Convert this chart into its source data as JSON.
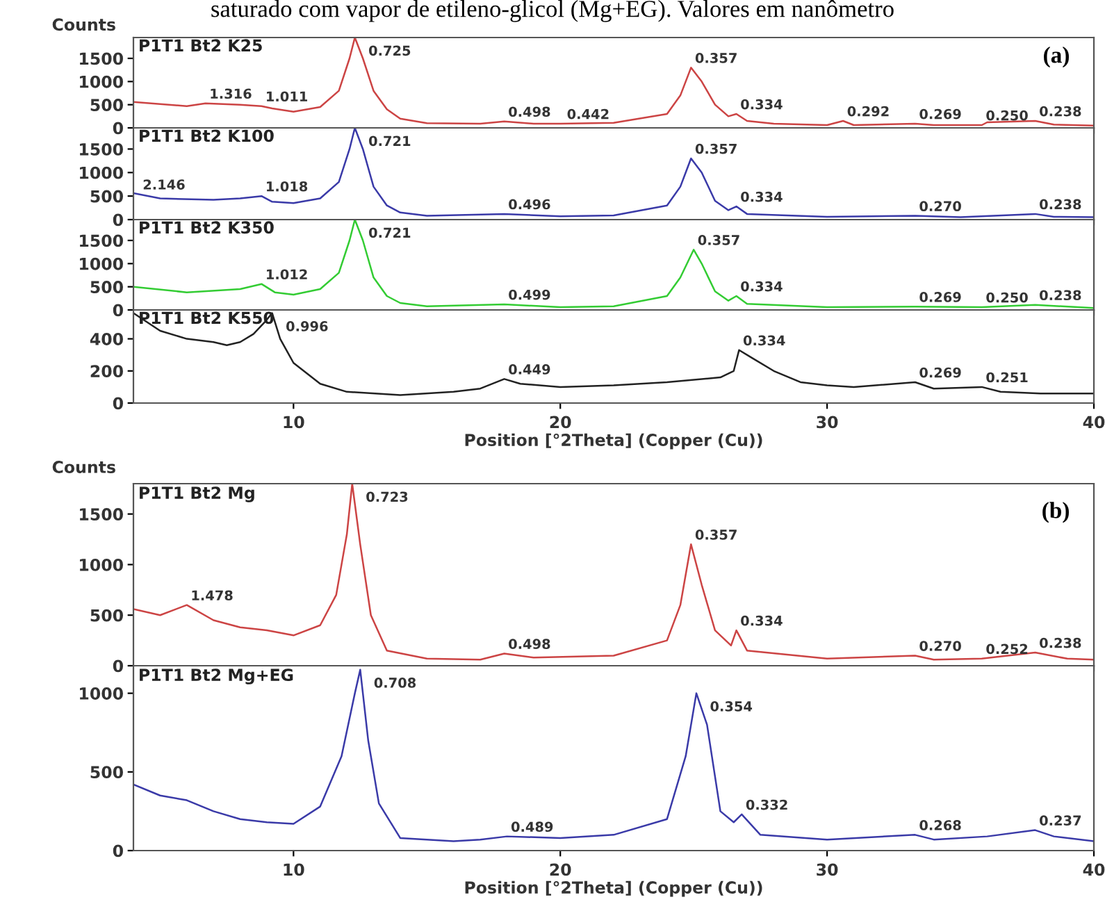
{
  "chart_data": [
    {
      "type": "line",
      "title": "saturado com vapor de etileno-glicol (Mg+EG). Valores em nanômetro",
      "ylabel": "Counts",
      "tick_labels": "y",
      "xlim": [
        4,
        40
      ],
      "xticks": [
        10,
        20,
        30,
        40
      ],
      "ylim": [
        0,
        1950
      ],
      "yticks": [
        0,
        500,
        1000,
        1500
      ],
      "x": [
        4,
        6,
        6.7,
        8,
        8.8,
        9.2,
        10,
        11,
        11.7,
        12.1,
        12.3,
        12.6,
        13,
        13.5,
        14,
        15,
        17,
        17.9,
        19,
        20,
        22,
        24,
        24.5,
        24.9,
        25.3,
        25.8,
        26.3,
        26.6,
        27,
        28,
        30,
        30.6,
        31,
        33.3,
        34,
        35.8,
        36,
        37.8,
        38.5,
        40
      ],
      "series": [
        {
          "name": "P1T1 Bt2 K25",
          "color": "#cc4444",
          "values": [
            560,
            470,
            530,
            500,
            470,
            420,
            350,
            450,
            800,
            1500,
            1950,
            1500,
            800,
            400,
            200,
            100,
            90,
            140,
            90,
            90,
            110,
            300,
            700,
            1300,
            1000,
            500,
            250,
            300,
            150,
            90,
            60,
            150,
            60,
            90,
            60,
            60,
            120,
            150,
            70,
            50
          ]
        }
      ],
      "annotations": [
        "(a)",
        {
          "text": "1.316",
          "x": 6.7,
          "y": 530
        },
        {
          "text": "1.011",
          "x": 8.8,
          "y": 470
        },
        {
          "text": "0.725",
          "x": 12.3,
          "y": 1950
        },
        {
          "text": "0.498",
          "x": 17.9,
          "y": 140
        },
        {
          "text": "0.442",
          "x": 20.1,
          "y": 90
        },
        {
          "text": "0.357",
          "x": 24.9,
          "y": 1300
        },
        {
          "text": "0.334",
          "x": 26.6,
          "y": 300
        },
        {
          "text": "0.292",
          "x": 30.6,
          "y": 150
        },
        {
          "text": "0.269",
          "x": 33.3,
          "y": 90
        },
        {
          "text": "0.250",
          "x": 35.8,
          "y": 60
        },
        {
          "text": "0.238",
          "x": 37.8,
          "y": 150
        }
      ]
    },
    {
      "type": "line",
      "tick_labels": "y",
      "xlim": [
        4,
        40
      ],
      "xticks": [
        10,
        20,
        30,
        40
      ],
      "ylim": [
        0,
        1950
      ],
      "yticks": [
        0,
        500,
        1000,
        1500
      ],
      "x": [
        4,
        5,
        7,
        8,
        8.8,
        9.2,
        10,
        11,
        11.7,
        12.1,
        12.3,
        12.6,
        13,
        13.5,
        14,
        15,
        17.9,
        20,
        22,
        24,
        24.5,
        24.9,
        25.3,
        25.8,
        26.3,
        26.6,
        27,
        30,
        33.3,
        35,
        37.8,
        38.5,
        40
      ],
      "series": [
        {
          "name": "P1T1 Bt2 K100",
          "color": "#3a3aa8",
          "values": [
            560,
            450,
            420,
            450,
            500,
            380,
            350,
            450,
            800,
            1500,
            1950,
            1500,
            700,
            300,
            150,
            80,
            120,
            70,
            90,
            300,
            700,
            1300,
            1000,
            400,
            200,
            280,
            120,
            60,
            80,
            50,
            120,
            60,
            50
          ]
        }
      ],
      "annotations": [
        {
          "text": "2.146",
          "x": 4.2,
          "y": 540
        },
        {
          "text": "1.018",
          "x": 8.8,
          "y": 500
        },
        {
          "text": "0.721",
          "x": 12.3,
          "y": 1950
        },
        {
          "text": "0.496",
          "x": 17.9,
          "y": 120
        },
        {
          "text": "0.357",
          "x": 24.9,
          "y": 1300
        },
        {
          "text": "0.334",
          "x": 26.6,
          "y": 280
        },
        {
          "text": "0.270",
          "x": 33.3,
          "y": 80
        },
        {
          "text": "0.238",
          "x": 37.8,
          "y": 120
        }
      ]
    },
    {
      "type": "line",
      "tick_labels": "y",
      "xlim": [
        4,
        40
      ],
      "xticks": [
        10,
        20,
        30,
        40
      ],
      "ylim": [
        0,
        1950
      ],
      "yticks": [
        0,
        500,
        1000,
        1500
      ],
      "x": [
        4,
        6,
        8,
        8.8,
        9.3,
        10,
        11,
        11.7,
        12.1,
        12.3,
        12.6,
        13,
        13.5,
        14,
        15,
        17.9,
        20,
        22,
        24,
        24.5,
        25.0,
        25.3,
        25.8,
        26.3,
        26.6,
        27,
        30,
        33.3,
        35.8,
        37.8,
        40
      ],
      "series": [
        {
          "name": "P1T1 Bt2 K350",
          "color": "#33cc33",
          "values": [
            500,
            380,
            450,
            560,
            380,
            330,
            450,
            800,
            1500,
            1950,
            1500,
            700,
            300,
            150,
            80,
            120,
            60,
            80,
            300,
            700,
            1300,
            1000,
            400,
            200,
            300,
            130,
            60,
            70,
            60,
            110,
            40
          ]
        }
      ],
      "annotations": [
        {
          "text": "1.012",
          "x": 8.8,
          "y": 560
        },
        {
          "text": "0.721",
          "x": 12.3,
          "y": 1950
        },
        {
          "text": "0.499",
          "x": 17.9,
          "y": 120
        },
        {
          "text": "0.357",
          "x": 25.0,
          "y": 1300
        },
        {
          "text": "0.334",
          "x": 26.6,
          "y": 300
        },
        {
          "text": "0.269",
          "x": 33.3,
          "y": 70
        },
        {
          "text": "0.250",
          "x": 35.8,
          "y": 60
        },
        {
          "text": "0.238",
          "x": 37.8,
          "y": 110
        }
      ]
    },
    {
      "type": "line",
      "xlabel": "Position [°2Theta] (Copper (Cu))",
      "xlim": [
        4,
        40
      ],
      "xticks": [
        10,
        20,
        30,
        40
      ],
      "ylim": [
        0,
        580
      ],
      "yticks": [
        0,
        200,
        400
      ],
      "x": [
        4,
        5,
        6,
        7,
        7.5,
        8,
        8.5,
        8.9,
        9.2,
        9.5,
        10,
        11,
        12,
        14,
        16,
        17,
        17.9,
        18.5,
        20,
        22,
        24,
        26,
        26.5,
        26.7,
        27.2,
        28,
        29,
        30,
        31,
        33.3,
        34,
        35.8,
        36.5,
        38,
        40
      ],
      "series": [
        {
          "name": "P1T1 Bt2 K550",
          "color": "#222222",
          "values": [
            560,
            450,
            400,
            380,
            360,
            380,
            430,
            500,
            560,
            400,
            250,
            120,
            70,
            50,
            70,
            90,
            150,
            120,
            100,
            110,
            130,
            160,
            200,
            330,
            280,
            200,
            130,
            110,
            100,
            130,
            90,
            100,
            70,
            60,
            60
          ]
        }
      ],
      "annotations": [
        {
          "text": "0.996",
          "x": 9.2,
          "y": 560
        },
        {
          "text": "0.449",
          "x": 17.9,
          "y": 150
        },
        {
          "text": "0.334",
          "x": 26.7,
          "y": 330
        },
        {
          "text": "0.269",
          "x": 33.3,
          "y": 130
        },
        {
          "text": "0.251",
          "x": 35.8,
          "y": 100
        }
      ]
    },
    {
      "type": "line",
      "ylabel": "Counts",
      "tick_labels": "y",
      "xlim": [
        4,
        40
      ],
      "xticks": [
        10,
        20,
        30,
        40
      ],
      "ylim": [
        0,
        1800
      ],
      "yticks": [
        0,
        500,
        1000,
        1500
      ],
      "x": [
        4,
        5,
        6,
        7,
        8,
        9,
        10,
        11,
        11.6,
        12.0,
        12.2,
        12.5,
        12.9,
        13.5,
        15,
        17,
        17.9,
        19,
        22,
        24,
        24.5,
        24.9,
        25.3,
        25.8,
        26.4,
        26.6,
        27,
        30,
        33.3,
        34,
        35.8,
        37.8,
        39,
        40
      ],
      "series": [
        {
          "name": "P1T1 Bt2 Mg",
          "color": "#cc4444",
          "values": [
            560,
            500,
            600,
            450,
            380,
            350,
            300,
            400,
            700,
            1300,
            1800,
            1200,
            500,
            150,
            70,
            60,
            120,
            80,
            100,
            250,
            600,
            1200,
            800,
            350,
            200,
            350,
            150,
            70,
            100,
            60,
            70,
            130,
            70,
            60
          ]
        }
      ],
      "annotations": [
        "(b)",
        {
          "text": "1.478",
          "x": 6,
          "y": 600
        },
        {
          "text": "0.723",
          "x": 12.2,
          "y": 1800
        },
        {
          "text": "0.498",
          "x": 17.9,
          "y": 120
        },
        {
          "text": "0.357",
          "x": 24.9,
          "y": 1200
        },
        {
          "text": "0.334",
          "x": 26.6,
          "y": 350
        },
        {
          "text": "0.270",
          "x": 33.3,
          "y": 100
        },
        {
          "text": "0.252",
          "x": 35.8,
          "y": 70
        },
        {
          "text": "0.238",
          "x": 37.8,
          "y": 130
        }
      ]
    },
    {
      "type": "line",
      "xlabel": "Position [°2Theta] (Copper (Cu))",
      "xlim": [
        4,
        40
      ],
      "xticks": [
        10,
        20,
        30,
        40
      ],
      "ylim": [
        0,
        1175
      ],
      "yticks": [
        0,
        500,
        1000
      ],
      "x": [
        4,
        5,
        6,
        7,
        8,
        9,
        10,
        11,
        11.8,
        12.3,
        12.5,
        12.8,
        13.2,
        14,
        16,
        17,
        18,
        20,
        22,
        24,
        24.7,
        25.1,
        25.5,
        26.0,
        26.5,
        26.8,
        27.5,
        30,
        33.3,
        34,
        36,
        37.8,
        38.5,
        40
      ],
      "series": [
        {
          "name": "P1T1 Bt2 Mg+EG",
          "color": "#3a3aa8",
          "values": [
            420,
            350,
            320,
            250,
            200,
            180,
            170,
            280,
            600,
            1000,
            1150,
            700,
            300,
            80,
            60,
            70,
            90,
            80,
            100,
            200,
            600,
            1000,
            800,
            250,
            180,
            230,
            100,
            70,
            100,
            70,
            90,
            130,
            90,
            60
          ]
        }
      ],
      "annotations": [
        {
          "text": "0.708",
          "x": 12.5,
          "y": 1150
        },
        {
          "text": "0.489",
          "x": 18,
          "y": 90
        },
        {
          "text": "0.354",
          "x": 25.1,
          "y": 1000
        },
        {
          "text": "0.332",
          "x": 26.8,
          "y": 230
        },
        {
          "text": "0.268",
          "x": 33.3,
          "y": 100
        },
        {
          "text": "0.237",
          "x": 37.8,
          "y": 130
        }
      ]
    }
  ]
}
